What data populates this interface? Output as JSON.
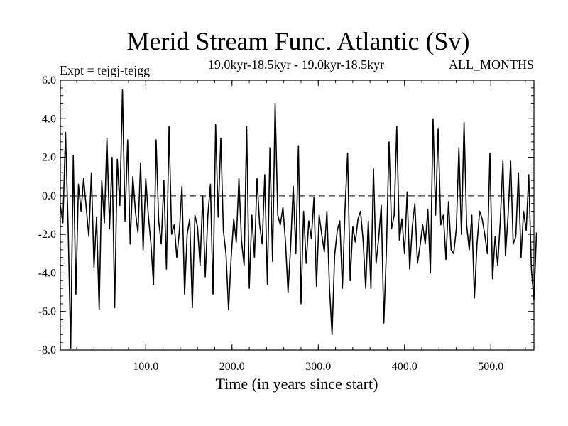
{
  "chart_data": {
    "type": "line",
    "title": "Merid Stream Func. Atlantic (Sv)",
    "subtitle_left": "Expt = tejgj-tejgg",
    "subtitle_center": "19.0kyr-18.5kyr - 19.0kyr-18.5kyr",
    "subtitle_right": "ALL_MONTHS",
    "xlabel": "Time (in years since start)",
    "ylabel": "",
    "xlim": [
      1,
      550
    ],
    "ylim": [
      -8.0,
      6.0
    ],
    "xticks": [
      100,
      200,
      300,
      400,
      500
    ],
    "xtick_labels": [
      "100.0",
      "200.0",
      "300.0",
      "400.0",
      "500.0"
    ],
    "yticks": [
      6,
      4,
      2,
      0,
      -2,
      -4,
      -6,
      -8
    ],
    "ytick_labels": [
      "6.0",
      "4.0",
      "2.0",
      "0.0",
      "-2.0",
      "-4.0",
      "-6.0",
      "-8.0"
    ],
    "zero_line": true,
    "series": [
      {
        "name": "Merid Stream Func. Atlantic",
        "x_start": 1,
        "x_step": 3,
        "values": [
          -0.5,
          -1.4,
          3.3,
          -1.5,
          -7.9,
          2.1,
          -5.1,
          0.6,
          -0.8,
          0.9,
          -0.6,
          -2.1,
          1.2,
          -3.7,
          -1.1,
          -5.9,
          0.8,
          -1.4,
          3.0,
          -1.7,
          2.0,
          -5.8,
          1.9,
          -0.5,
          5.5,
          -1.3,
          2.9,
          -2.5,
          1.0,
          -0.8,
          -1.9,
          1.7,
          -2.8,
          0.9,
          -1.0,
          -2.5,
          -4.6,
          2.9,
          -1.3,
          -2.5,
          0.8,
          -3.8,
          3.6,
          -2.0,
          -1.5,
          -3.2,
          -1.8,
          0.5,
          -5.1,
          -2.0,
          -1.2,
          -5.8,
          -1.0,
          -1.6,
          -3.6,
          0.0,
          -4.2,
          -1.0,
          0.6,
          -5.1,
          3.7,
          -1.1,
          3.0,
          -1.8,
          -3.0,
          -5.9,
          -3.2,
          -1.2,
          -2.4,
          0.9,
          -2.3,
          -3.6,
          3.6,
          -4.8,
          -1.0,
          -3.2,
          0.9,
          -1.5,
          -2.5,
          1.1,
          -4.6,
          2.5,
          -3.4,
          4.8,
          -1.0,
          -1.5,
          -0.6,
          -2.4,
          -5.0,
          -2.6,
          0.5,
          -3.0,
          2.6,
          -5.6,
          -0.8,
          -3.5,
          -1.3,
          -2.2,
          -0.1,
          -4.7,
          -1.0,
          -2.0,
          -2.9,
          -0.8,
          -4.8,
          -7.2,
          -3.1,
          -1.8,
          -1.3,
          -4.8,
          -0.7,
          2.2,
          -4.4,
          -1.6,
          -2.4,
          -1.2,
          -0.8,
          -2.3,
          -4.8,
          -1.3,
          -4.8,
          1.4,
          -3.5,
          -2.2,
          -0.5,
          -6.6,
          -2.9,
          2.8,
          -1.7,
          -1.0,
          3.6,
          -2.3,
          -1.2,
          -3.0,
          0.2,
          -3.8,
          -1.6,
          -0.4,
          -3.5,
          -2.6,
          -1.5,
          -2.5,
          -0.7,
          -4.0,
          4.0,
          -1.0,
          3.5,
          -1.5,
          -1.0,
          -3.3,
          -0.3,
          -2.8,
          -3.0,
          -1.7,
          2.5,
          -2.0,
          3.8,
          -1.5,
          -2.8,
          -1.0,
          -5.3,
          -2.5,
          -0.8,
          -1.2,
          -2.0,
          -3.0,
          2.2,
          -4.3,
          -2.1,
          -3.6,
          -1.3,
          1.8,
          -3.1,
          -1.0,
          1.8,
          -2.5,
          -2.1,
          1.2,
          -3.2,
          -0.8,
          -1.8,
          1.1,
          -3.8,
          -5.4,
          -1.9
        ]
      }
    ]
  }
}
